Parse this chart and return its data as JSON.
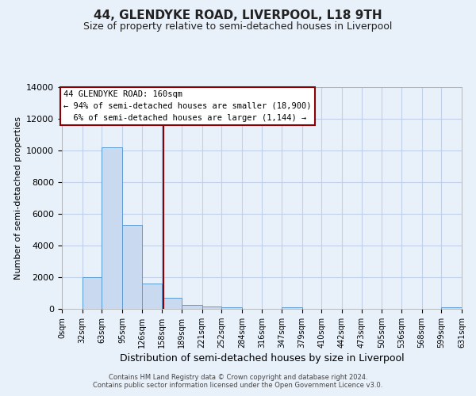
{
  "title": "44, GLENDYKE ROAD, LIVERPOOL, L18 9TH",
  "subtitle": "Size of property relative to semi-detached houses in Liverpool",
  "xlabel": "Distribution of semi-detached houses by size in Liverpool",
  "ylabel": "Number of semi-detached properties",
  "footer_line1": "Contains HM Land Registry data © Crown copyright and database right 2024.",
  "footer_line2": "Contains public sector information licensed under the Open Government Licence v3.0.",
  "annotation_line1": "44 GLENDYKE ROAD: 160sqm",
  "annotation_line2": "← 94% of semi-detached houses are smaller (18,900)",
  "annotation_line3": "6% of semi-detached houses are larger (1,144) →",
  "bin_edges": [
    0,
    32,
    63,
    95,
    126,
    158,
    189,
    221,
    252,
    284,
    316,
    347,
    379,
    410,
    442,
    473,
    505,
    536,
    568,
    599,
    631
  ],
  "bar_heights": [
    0,
    2000,
    10200,
    5300,
    1600,
    700,
    250,
    130,
    80,
    0,
    0,
    80,
    0,
    0,
    0,
    0,
    0,
    0,
    0,
    80
  ],
  "bar_color": "#c9d9f0",
  "bar_edge_color": "#5b9bd5",
  "vline_color": "#8b0000",
  "vline_x": 160,
  "ylim": [
    0,
    14000
  ],
  "yticks": [
    0,
    2000,
    4000,
    6000,
    8000,
    10000,
    12000,
    14000
  ],
  "tick_labels": [
    "0sqm",
    "32sqm",
    "63sqm",
    "95sqm",
    "126sqm",
    "158sqm",
    "189sqm",
    "221sqm",
    "252sqm",
    "284sqm",
    "316sqm",
    "347sqm",
    "379sqm",
    "410sqm",
    "442sqm",
    "473sqm",
    "505sqm",
    "536sqm",
    "568sqm",
    "599sqm",
    "631sqm"
  ],
  "grid_color": "#c0d0e8",
  "bg_color": "#e8f0fa",
  "annotation_box_color": "#ffffff",
  "annotation_box_edgecolor": "#8b0000",
  "title_fontsize": 11,
  "subtitle_fontsize": 9
}
